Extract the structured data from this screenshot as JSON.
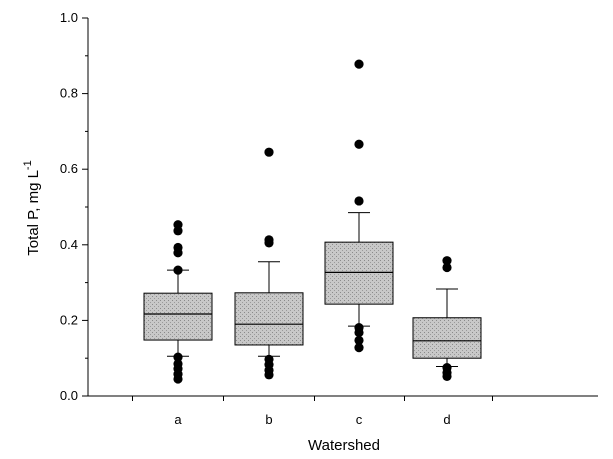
{
  "chart_data": {
    "type": "box",
    "xlabel": "Watershed",
    "ylabel": "Total P, mg L",
    "ylabel_superscript": "-1",
    "ylim": [
      0,
      1.0
    ],
    "yticks": [
      "0.0",
      "0.2",
      "0.4",
      "0.6",
      "0.8",
      "1.0"
    ],
    "ytick_values": [
      0,
      0.2,
      0.4,
      0.6,
      0.8,
      1.0
    ],
    "y_minor_ticks": [
      0.1,
      0.3,
      0.5,
      0.7,
      0.9
    ],
    "grid": false,
    "fill_color": "#c8c8c8",
    "point_color": "#000000",
    "categories": [
      "a",
      "b",
      "c",
      "d"
    ],
    "boxes": [
      {
        "category": "a",
        "whisker_low": 0.105,
        "q1": 0.148,
        "median": 0.217,
        "q3": 0.272,
        "whisker_high": 0.333,
        "outliers": [
          0.453,
          0.437,
          0.393,
          0.379,
          0.333,
          0.103,
          0.085,
          0.072,
          0.058,
          0.045
        ]
      },
      {
        "category": "b",
        "whisker_low": 0.105,
        "q1": 0.135,
        "median": 0.19,
        "q3": 0.273,
        "whisker_high": 0.355,
        "outliers": [
          0.645,
          0.413,
          0.405,
          0.097,
          0.083,
          0.068,
          0.056
        ]
      },
      {
        "category": "c",
        "whisker_low": 0.185,
        "q1": 0.243,
        "median": 0.327,
        "q3": 0.407,
        "whisker_high": 0.485,
        "outliers": [
          0.878,
          0.666,
          0.516,
          0.181,
          0.168,
          0.147,
          0.128
        ]
      },
      {
        "category": "d",
        "whisker_low": 0.078,
        "q1": 0.1,
        "median": 0.146,
        "q3": 0.207,
        "whisker_high": 0.283,
        "outliers": [
          0.358,
          0.34,
          0.075,
          0.062,
          0.052
        ]
      }
    ]
  }
}
